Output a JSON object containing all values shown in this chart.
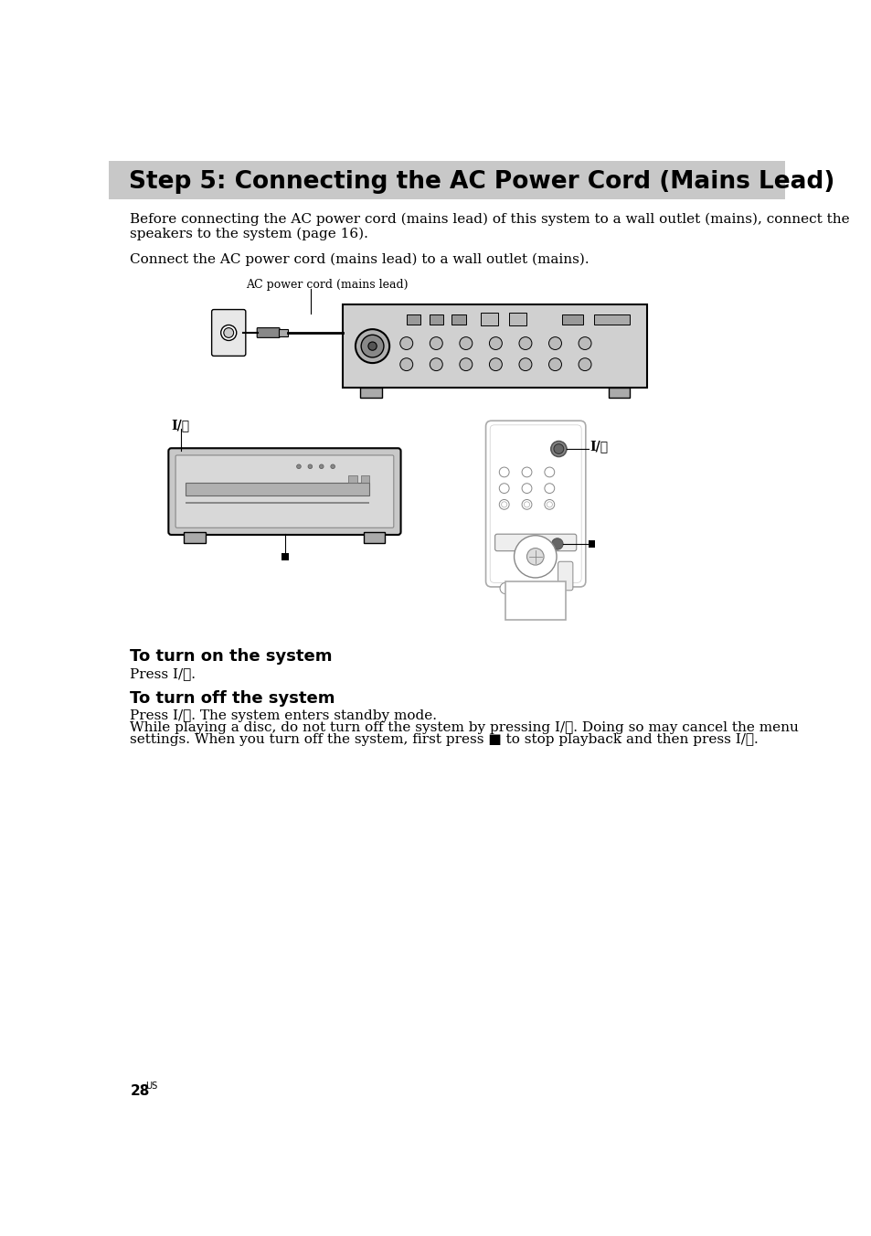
{
  "title": "Step 5: Connecting the AC Power Cord (Mains Lead)",
  "title_bg": "#c8c8c8",
  "title_fontsize": 19,
  "body_fontsize": 11,
  "page_bg": "#ffffff",
  "page_number": "28",
  "page_number_suffix": "US",
  "para1_line1": "Before connecting the AC power cord (mains lead) of this system to a wall outlet (mains), connect the",
  "para1_line2": "speakers to the system (page 16).",
  "para2": "Connect the AC power cord (mains lead) to a wall outlet (mains).",
  "label_ac": "AC power cord (mains lead)",
  "section1_title": "To turn on the system",
  "section1_body": "Press I/⏻.",
  "section2_title": "To turn off the system",
  "section2_body1": "Press I/⏻. The system enters standby mode.",
  "section2_body2a": "While playing a disc, do not turn off the system by pressing I/⏻. Doing so may cancel the menu",
  "section2_body2b": "settings. When you turn off the system, first press ■ to stop playback and then press I/⏻.",
  "label_power_button": "I/⏻"
}
